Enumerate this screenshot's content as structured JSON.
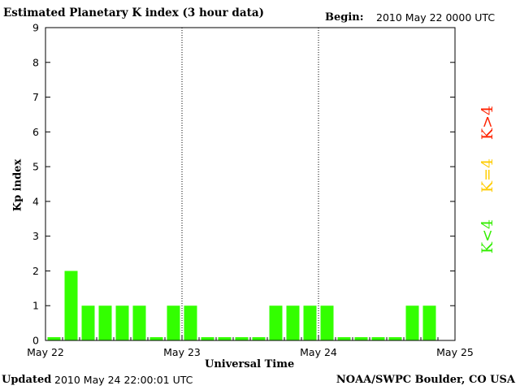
{
  "header": {
    "title": "Estimated Planetary K index (3 hour data)",
    "begin_label": "Begin:",
    "begin_value": "2010 May 22 0000 UTC"
  },
  "footer": {
    "updated_label": "Updated",
    "updated_value": "2010 May 24 22:00:01 UTC",
    "credit": "NOAA/SWPC Boulder, CO USA"
  },
  "legend": [
    {
      "label": "K>4",
      "color": "#ff2200"
    },
    {
      "label": "K=4",
      "color": "#ffcc00"
    },
    {
      "label": "K<4",
      "color": "#33ee00"
    }
  ],
  "chart_data": {
    "type": "bar",
    "title": "Estimated Planetary K index (3 hour data)",
    "xlabel": "Universal Time",
    "ylabel": "Kp index",
    "ylim": [
      0,
      9
    ],
    "yticks": [
      0,
      1,
      2,
      3,
      4,
      5,
      6,
      7,
      8,
      9
    ],
    "xtick_labels": [
      "May 22",
      "May 23",
      "May 24",
      "May 25"
    ],
    "day_separators": [
      "May 23",
      "May 24"
    ],
    "bar_color": "#33ff00",
    "interval_hours": 3,
    "values": [
      0,
      2,
      1,
      1,
      1,
      1,
      0,
      1,
      1,
      0,
      0,
      0,
      0,
      1,
      1,
      1,
      1,
      0,
      0,
      0,
      0,
      1,
      1
    ]
  }
}
